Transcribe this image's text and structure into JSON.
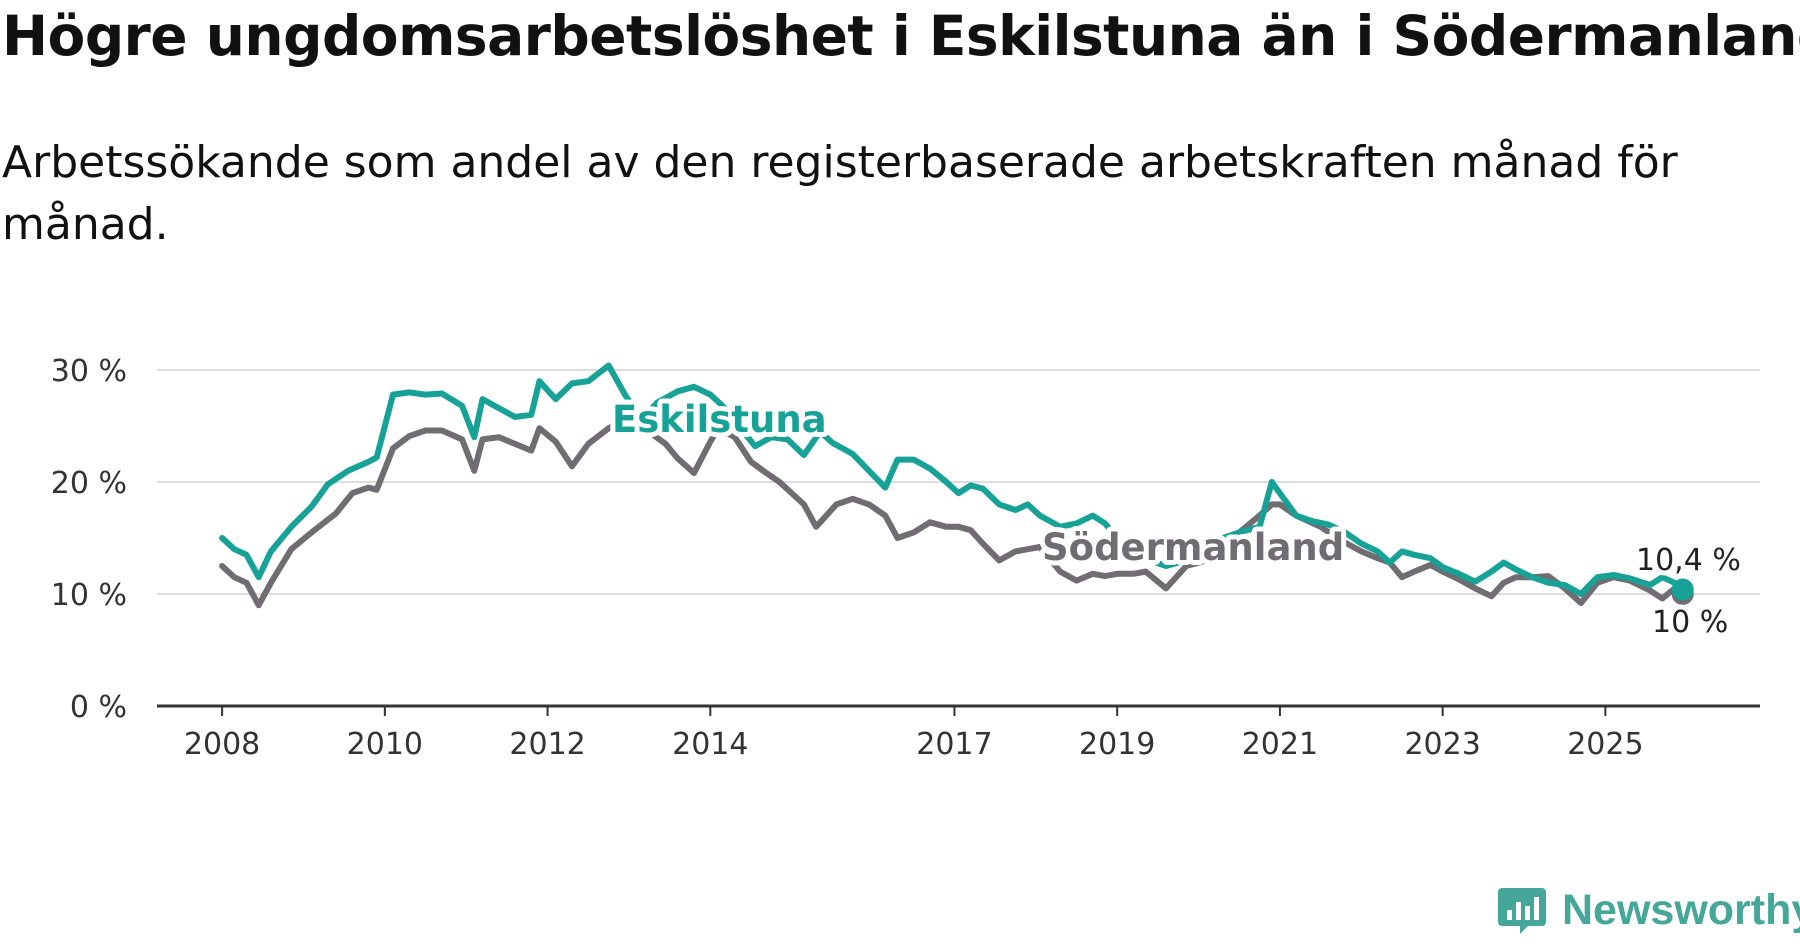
{
  "title": "Högre ungdomsarbetslöshet i Eskilstuna än i Södermanland",
  "subtitle": "Arbetssökande som andel av den registerbaserade arbetskraften månad för månad.",
  "brand": {
    "name": "Newsworthy",
    "icon": "newsworthy-logo-icon",
    "color": "#45a79a"
  },
  "chart_data": {
    "type": "line",
    "title": "Högre ungdomsarbetslöshet i Eskilstuna än i Södermanland",
    "xlabel": "",
    "ylabel": "",
    "ylim": [
      0,
      30
    ],
    "xlim": [
      2007.2,
      2026.9
    ],
    "y_ticks": [
      0,
      10,
      20,
      30
    ],
    "y_tick_labels": [
      "0 %",
      "10 %",
      "20 %",
      "30 %"
    ],
    "x_ticks": [
      2008,
      2010,
      2012,
      2014,
      2017,
      2019,
      2021,
      2023,
      2025
    ],
    "x_tick_labels": [
      "2008",
      "2010",
      "2012",
      "2014",
      "2017",
      "2019",
      "2021",
      "2023",
      "2025"
    ],
    "grid": true,
    "series": [
      {
        "name": "Södermanland",
        "color": "#6f6d72",
        "label": "Södermanland",
        "end_label": "10 %",
        "x": [
          2008.0,
          2008.15,
          2008.3,
          2008.45,
          2008.6,
          2008.85,
          2009.1,
          2009.4,
          2009.6,
          2009.8,
          2009.9,
          2010.1,
          2010.3,
          2010.5,
          2010.7,
          2010.95,
          2011.1,
          2011.2,
          2011.4,
          2011.6,
          2011.8,
          2011.9,
          2012.1,
          2012.3,
          2012.5,
          2012.75,
          2012.95,
          2013.1,
          2013.3,
          2013.45,
          2013.6,
          2013.8,
          2014.0,
          2014.1,
          2014.3,
          2014.5,
          2014.65,
          2014.85,
          2015.0,
          2015.15,
          2015.3,
          2015.55,
          2015.75,
          2015.95,
          2016.15,
          2016.3,
          2016.5,
          2016.7,
          2016.9,
          2017.05,
          2017.2,
          2017.35,
          2017.55,
          2017.75,
          2017.9,
          2018.05,
          2018.3,
          2018.5,
          2018.7,
          2018.85,
          2019.0,
          2019.2,
          2019.35,
          2019.6,
          2019.85,
          2020.1,
          2020.3,
          2020.5,
          2020.75,
          2020.9,
          2021.0,
          2021.2,
          2021.5,
          2021.75,
          2022.0,
          2022.2,
          2022.35,
          2022.5,
          2022.65,
          2022.85,
          2023.0,
          2023.2,
          2023.4,
          2023.6,
          2023.75,
          2023.9,
          2024.1,
          2024.3,
          2024.5,
          2024.7,
          2024.9,
          2025.1,
          2025.3,
          2025.55,
          2025.7,
          2025.85,
          2025.95
        ],
        "values": [
          12.5,
          11.5,
          11.0,
          9.0,
          11.0,
          14.0,
          15.5,
          17.2,
          19.0,
          19.5,
          19.3,
          23.0,
          24.1,
          24.6,
          24.6,
          23.8,
          21.0,
          23.8,
          24.0,
          23.4,
          22.8,
          24.8,
          23.6,
          21.4,
          23.4,
          24.8,
          25.6,
          26.3,
          24.2,
          23.4,
          22.1,
          20.8,
          23.6,
          24.8,
          24.0,
          21.8,
          21.0,
          20.0,
          19.0,
          18.0,
          16.0,
          18.0,
          18.5,
          18.0,
          17.0,
          15.0,
          15.5,
          16.4,
          16.0,
          16.0,
          15.7,
          14.5,
          13.0,
          13.8,
          14.0,
          14.2,
          12.0,
          11.2,
          11.8,
          11.6,
          11.8,
          11.8,
          12.0,
          10.5,
          12.5,
          13.0,
          14.5,
          15.5,
          17.0,
          18.0,
          18.0,
          17.0,
          16.0,
          14.8,
          13.8,
          13.2,
          12.8,
          11.5,
          12.0,
          12.6,
          12.0,
          11.3,
          10.5,
          9.8,
          11.0,
          11.5,
          11.5,
          11.6,
          10.5,
          9.2,
          11.0,
          11.5,
          11.2,
          10.3,
          9.6,
          10.5,
          10.0
        ]
      },
      {
        "name": "Eskilstuna",
        "color": "#17a298",
        "label": "Eskilstuna",
        "end_label": "10,4 %",
        "x": [
          2008.0,
          2008.15,
          2008.3,
          2008.45,
          2008.6,
          2008.85,
          2009.1,
          2009.3,
          2009.55,
          2009.8,
          2009.9,
          2010.1,
          2010.3,
          2010.5,
          2010.7,
          2010.95,
          2011.1,
          2011.2,
          2011.4,
          2011.6,
          2011.8,
          2011.9,
          2012.1,
          2012.3,
          2012.5,
          2012.75,
          2012.95,
          2013.15,
          2013.35,
          2013.6,
          2013.8,
          2014.0,
          2014.15,
          2014.35,
          2014.55,
          2014.75,
          2014.95,
          2015.15,
          2015.35,
          2015.5,
          2015.75,
          2015.95,
          2016.15,
          2016.3,
          2016.5,
          2016.7,
          2016.9,
          2017.05,
          2017.2,
          2017.35,
          2017.55,
          2017.75,
          2017.9,
          2018.05,
          2018.3,
          2018.5,
          2018.7,
          2018.85,
          2019.0,
          2019.2,
          2019.4,
          2019.6,
          2019.85,
          2020.1,
          2020.3,
          2020.5,
          2020.75,
          2020.9,
          2021.0,
          2021.2,
          2021.4,
          2021.6,
          2021.8,
          2022.0,
          2022.2,
          2022.35,
          2022.5,
          2022.65,
          2022.85,
          2023.0,
          2023.2,
          2023.4,
          2023.6,
          2023.75,
          2023.9,
          2024.1,
          2024.3,
          2024.5,
          2024.7,
          2024.9,
          2025.1,
          2025.3,
          2025.55,
          2025.7,
          2025.85,
          2025.95
        ],
        "values": [
          15.0,
          14.0,
          13.5,
          11.5,
          13.8,
          16.0,
          17.8,
          19.8,
          21.0,
          21.8,
          22.2,
          27.8,
          28.0,
          27.8,
          27.9,
          26.8,
          24.0,
          27.4,
          26.6,
          25.8,
          26.0,
          29.0,
          27.4,
          28.8,
          29.0,
          30.4,
          27.8,
          25.6,
          27.1,
          28.1,
          28.5,
          27.8,
          26.8,
          25.0,
          23.2,
          24.0,
          23.8,
          22.4,
          24.5,
          23.5,
          22.5,
          21.0,
          19.5,
          22.0,
          22.0,
          21.2,
          20.0,
          19.0,
          19.7,
          19.4,
          18.0,
          17.5,
          18.0,
          17.0,
          16.0,
          16.3,
          17.0,
          16.3,
          15.0,
          13.0,
          13.0,
          12.5,
          13.0,
          13.5,
          15.0,
          15.5,
          16.0,
          20.0,
          19.0,
          17.0,
          16.5,
          16.2,
          15.5,
          14.5,
          13.8,
          12.8,
          13.8,
          13.5,
          13.2,
          12.4,
          11.8,
          11.1,
          12.0,
          12.8,
          12.2,
          11.5,
          11.0,
          10.8,
          10.0,
          11.5,
          11.7,
          11.4,
          10.8,
          11.5,
          11.0,
          10.4
        ]
      }
    ]
  }
}
